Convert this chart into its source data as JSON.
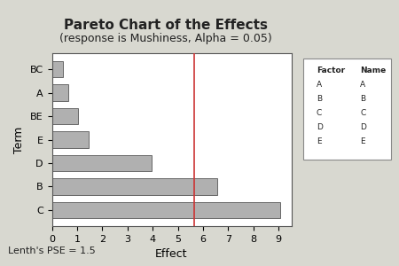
{
  "title": "Pareto Chart of the Effects",
  "subtitle": "(response is Mushiness, Alpha = 0.05)",
  "terms": [
    "C",
    "B",
    "D",
    "E",
    "BE",
    "A",
    "BC"
  ],
  "values": [
    9.05,
    6.55,
    3.95,
    1.45,
    1.05,
    0.65,
    0.45
  ],
  "bar_color": "#b0b0b0",
  "bar_edge_color": "#555555",
  "alpha_line": 5.646,
  "alpha_line_color": "#cc3333",
  "xlabel": "Effect",
  "ylabel": "Term",
  "xlim": [
    0,
    9.5
  ],
  "xticks": [
    0,
    1,
    2,
    3,
    4,
    5,
    6,
    7,
    8,
    9
  ],
  "lenth_pse": "Lenth's PSE = 1.5",
  "legend_factors": [
    "A",
    "B",
    "C",
    "D",
    "E"
  ],
  "legend_names": [
    "A",
    "B",
    "C",
    "D",
    "E"
  ],
  "background_color": "#d8d8d0",
  "plot_bg_color": "#ffffff",
  "title_fontsize": 11,
  "subtitle_fontsize": 9,
  "label_fontsize": 9,
  "tick_fontsize": 8
}
